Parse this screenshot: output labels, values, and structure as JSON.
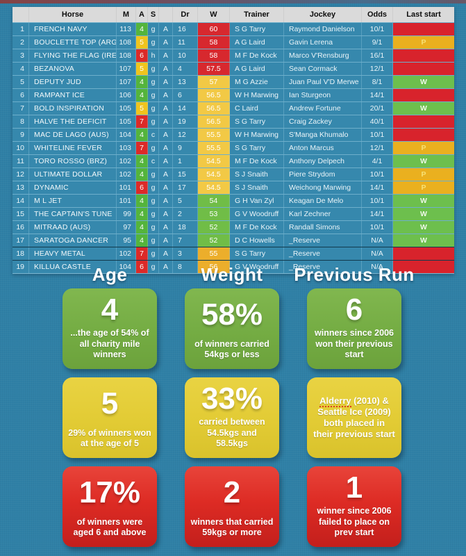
{
  "table": {
    "headers": {
      "num": "",
      "horse": "Horse",
      "m": "M",
      "a": "A",
      "s": "S",
      "a2": "",
      "dr": "Dr",
      "w": "W",
      "trainer": "Trainer",
      "jockey": "Jockey",
      "odds": "Odds",
      "last_start": "Last start"
    },
    "rows": [
      {
        "num": "1",
        "horse": "FRENCH NAVY",
        "m": "113",
        "a": "4",
        "a_color": "green",
        "s": "g",
        "a2": "A",
        "dr": "16",
        "w": "60",
        "w_color": "red",
        "trainer": "S G Tarry",
        "jockey": "Raymond Danielson",
        "odds": "10/1",
        "last": "",
        "last_color": "red",
        "reserve": false
      },
      {
        "num": "2",
        "horse": "BOUCLETTE TOP (ARG)",
        "m": "108",
        "a": "5",
        "a_color": "yellow",
        "s": "g",
        "a2": "A",
        "dr": "11",
        "w": "58",
        "w_color": "red",
        "trainer": "A G Laird",
        "jockey": "Gavin Lerena",
        "odds": "9/1",
        "last": "P",
        "last_color": "yellow",
        "reserve": false
      },
      {
        "num": "3",
        "horse": "FLYING THE FLAG (IRE)",
        "m": "108",
        "a": "6",
        "a_color": "red",
        "s": "h",
        "a2": "A",
        "dr": "10",
        "w": "58",
        "w_color": "red",
        "trainer": "M F De Kock",
        "jockey": "Marco V'Rensburg",
        "odds": "16/1",
        "last": "",
        "last_color": "red",
        "reserve": false
      },
      {
        "num": "4",
        "horse": "BEZANOVA",
        "m": "107",
        "a": "5",
        "a_color": "yellow",
        "s": "g",
        "a2": "A",
        "dr": "4",
        "w": "57.5",
        "w_color": "red",
        "trainer": "A G Laird",
        "jockey": "Sean Cormack",
        "odds": "12/1",
        "last": "",
        "last_color": "red",
        "reserve": false
      },
      {
        "num": "5",
        "horse": "DEPUTY JUD",
        "m": "107",
        "a": "4",
        "a_color": "green",
        "s": "g",
        "a2": "A",
        "dr": "13",
        "w": "57",
        "w_color": "yellow",
        "trainer": "M G Azzie",
        "jockey": "Juan Paul V'D Merwe",
        "odds": "8/1",
        "last": "W",
        "last_color": "green",
        "reserve": false
      },
      {
        "num": "6",
        "horse": "RAMPANT ICE",
        "m": "106",
        "a": "4",
        "a_color": "green",
        "s": "g",
        "a2": "A",
        "dr": "6",
        "w": "56.5",
        "w_color": "yellow",
        "trainer": "W H Marwing",
        "jockey": "Ian Sturgeon",
        "odds": "14/1",
        "last": "",
        "last_color": "red",
        "reserve": false
      },
      {
        "num": "7",
        "horse": "BOLD INSPIRATION",
        "m": "105",
        "a": "5",
        "a_color": "yellow",
        "s": "g",
        "a2": "A",
        "dr": "14",
        "w": "56.5",
        "w_color": "yellow",
        "trainer": "C Laird",
        "jockey": "Andrew Fortune",
        "odds": "20/1",
        "last": "W",
        "last_color": "green",
        "reserve": false
      },
      {
        "num": "8",
        "horse": "HALVE THE DEFICIT",
        "m": "105",
        "a": "7",
        "a_color": "red",
        "s": "g",
        "a2": "A",
        "dr": "19",
        "w": "56.5",
        "w_color": "yellow",
        "trainer": "S G Tarry",
        "jockey": "Craig Zackey",
        "odds": "40/1",
        "last": "",
        "last_color": "red",
        "reserve": false
      },
      {
        "num": "9",
        "horse": "MAC DE LAGO (AUS)",
        "m": "104",
        "a": "4",
        "a_color": "green",
        "s": "c",
        "a2": "A",
        "dr": "12",
        "w": "55.5",
        "w_color": "yellow",
        "trainer": "W H Marwing",
        "jockey": "S'Manga Khumalo",
        "odds": "10/1",
        "last": "",
        "last_color": "red",
        "reserve": false
      },
      {
        "num": "10",
        "horse": "WHITELINE FEVER",
        "m": "103",
        "a": "7",
        "a_color": "red",
        "s": "g",
        "a2": "A",
        "dr": "9",
        "w": "55.5",
        "w_color": "yellow",
        "trainer": "S G Tarry",
        "jockey": "Anton Marcus",
        "odds": "12/1",
        "last": "P",
        "last_color": "yellow",
        "reserve": false
      },
      {
        "num": "11",
        "horse": "TORO ROSSO (BRZ)",
        "m": "102",
        "a": "4",
        "a_color": "green",
        "s": "c",
        "a2": "A",
        "dr": "1",
        "w": "54.5",
        "w_color": "yellow",
        "trainer": "M F De Kock",
        "jockey": "Anthony Delpech",
        "odds": "4/1",
        "last": "W",
        "last_color": "green",
        "reserve": false
      },
      {
        "num": "12",
        "horse": "ULTIMATE DOLLAR",
        "m": "102",
        "a": "4",
        "a_color": "green",
        "s": "g",
        "a2": "A",
        "dr": "15",
        "w": "54.5",
        "w_color": "yellow",
        "trainer": "S J Snaith",
        "jockey": "Piere Strydom",
        "odds": "10/1",
        "last": "P",
        "last_color": "yellow",
        "reserve": false
      },
      {
        "num": "13",
        "horse": "DYNAMIC",
        "m": "101",
        "a": "6",
        "a_color": "red",
        "s": "g",
        "a2": "A",
        "dr": "17",
        "w": "54.5",
        "w_color": "yellow",
        "trainer": "S J Snaith",
        "jockey": "Weichong Marwing",
        "odds": "14/1",
        "last": "P",
        "last_color": "yellow",
        "reserve": false
      },
      {
        "num": "14",
        "horse": "M L JET",
        "m": "101",
        "a": "4",
        "a_color": "green",
        "s": "g",
        "a2": "A",
        "dr": "5",
        "w": "54",
        "w_color": "green",
        "trainer": "G H Van Zyl",
        "jockey": "Keagan De Melo",
        "odds": "10/1",
        "last": "W",
        "last_color": "green",
        "reserve": false
      },
      {
        "num": "15",
        "horse": "THE CAPTAIN'S TUNE",
        "m": "99",
        "a": "4",
        "a_color": "green",
        "s": "g",
        "a2": "A",
        "dr": "2",
        "w": "53",
        "w_color": "green",
        "trainer": "G V Woodruff",
        "jockey": "Karl Zechner",
        "odds": "14/1",
        "last": "W",
        "last_color": "green",
        "reserve": false
      },
      {
        "num": "16",
        "horse": "MITRAAD (AUS)",
        "m": "97",
        "a": "4",
        "a_color": "green",
        "s": "g",
        "a2": "A",
        "dr": "18",
        "w": "52",
        "w_color": "green",
        "trainer": "M F De Kock",
        "jockey": "Randall Simons",
        "odds": "10/1",
        "last": "W",
        "last_color": "green",
        "reserve": false
      },
      {
        "num": "17",
        "horse": "SARATOGA DANCER",
        "m": "95",
        "a": "4",
        "a_color": "green",
        "s": "g",
        "a2": "A",
        "dr": "7",
        "w": "52",
        "w_color": "green",
        "trainer": "D C Howells",
        "jockey": "_Reserve",
        "odds": "N/A",
        "last": "W",
        "last_color": "green",
        "reserve": false
      },
      {
        "num": "18",
        "horse": "HEAVY METAL",
        "m": "102",
        "a": "7",
        "a_color": "red",
        "s": "g",
        "a2": "A",
        "dr": "3",
        "w": "55",
        "w_color": "amber",
        "trainer": "S G Tarry",
        "jockey": "_Reserve",
        "odds": "N/A",
        "last": "",
        "last_color": "red",
        "reserve": true
      },
      {
        "num": "19",
        "horse": "KILLUA CASTLE",
        "m": "104",
        "a": "6",
        "a_color": "red",
        "s": "g",
        "a2": "A",
        "dr": "8",
        "w": "56",
        "w_color": "amber",
        "trainer": "G V Woodruff",
        "jockey": "_Reserve",
        "odds": "N/A",
        "last": "",
        "last_color": "red",
        "reserve": true
      }
    ]
  },
  "stats": {
    "columns": [
      "Age",
      "Weight",
      "Previous Run"
    ],
    "cards": [
      {
        "color": "green",
        "value": "4",
        "caption": "...the age of 54% of all charity mile winners"
      },
      {
        "color": "green",
        "value": "58%",
        "caption": "of winners carried 54kgs or less"
      },
      {
        "color": "green",
        "value": "6",
        "caption": "winners since 2006 won their previous start"
      },
      {
        "color": "yellow",
        "value": "5",
        "caption": "29% of winners won at the age of 5"
      },
      {
        "color": "yellow",
        "value": "33%",
        "caption": "carried between 54.5kgs and 58.5kgs"
      },
      {
        "color": "yellow",
        "value": "",
        "caption_highlight": "Alderry",
        "caption": " (2010) & Seattle Ice (2009) both placed in their previous start"
      },
      {
        "color": "red",
        "value": "17%",
        "caption": "of winners were aged 6 and above"
      },
      {
        "color": "red",
        "value": "2",
        "caption": "winners that carried 59kgs or more"
      },
      {
        "color": "red",
        "value": "1",
        "caption": "winner since 2006 failed to place on prev start"
      }
    ]
  },
  "colors": {
    "background": "#2F80A6",
    "table_row": "#3688AD",
    "table_header": "#DADADA",
    "green": "#6FAE3D",
    "yellow": "#E2CB34",
    "red": "#DD2B24",
    "cell_green": "#54B43C",
    "cell_yellow": "#EFC41E",
    "cell_red": "#DC2A28",
    "cell_amber": "#ECAE2B"
  }
}
